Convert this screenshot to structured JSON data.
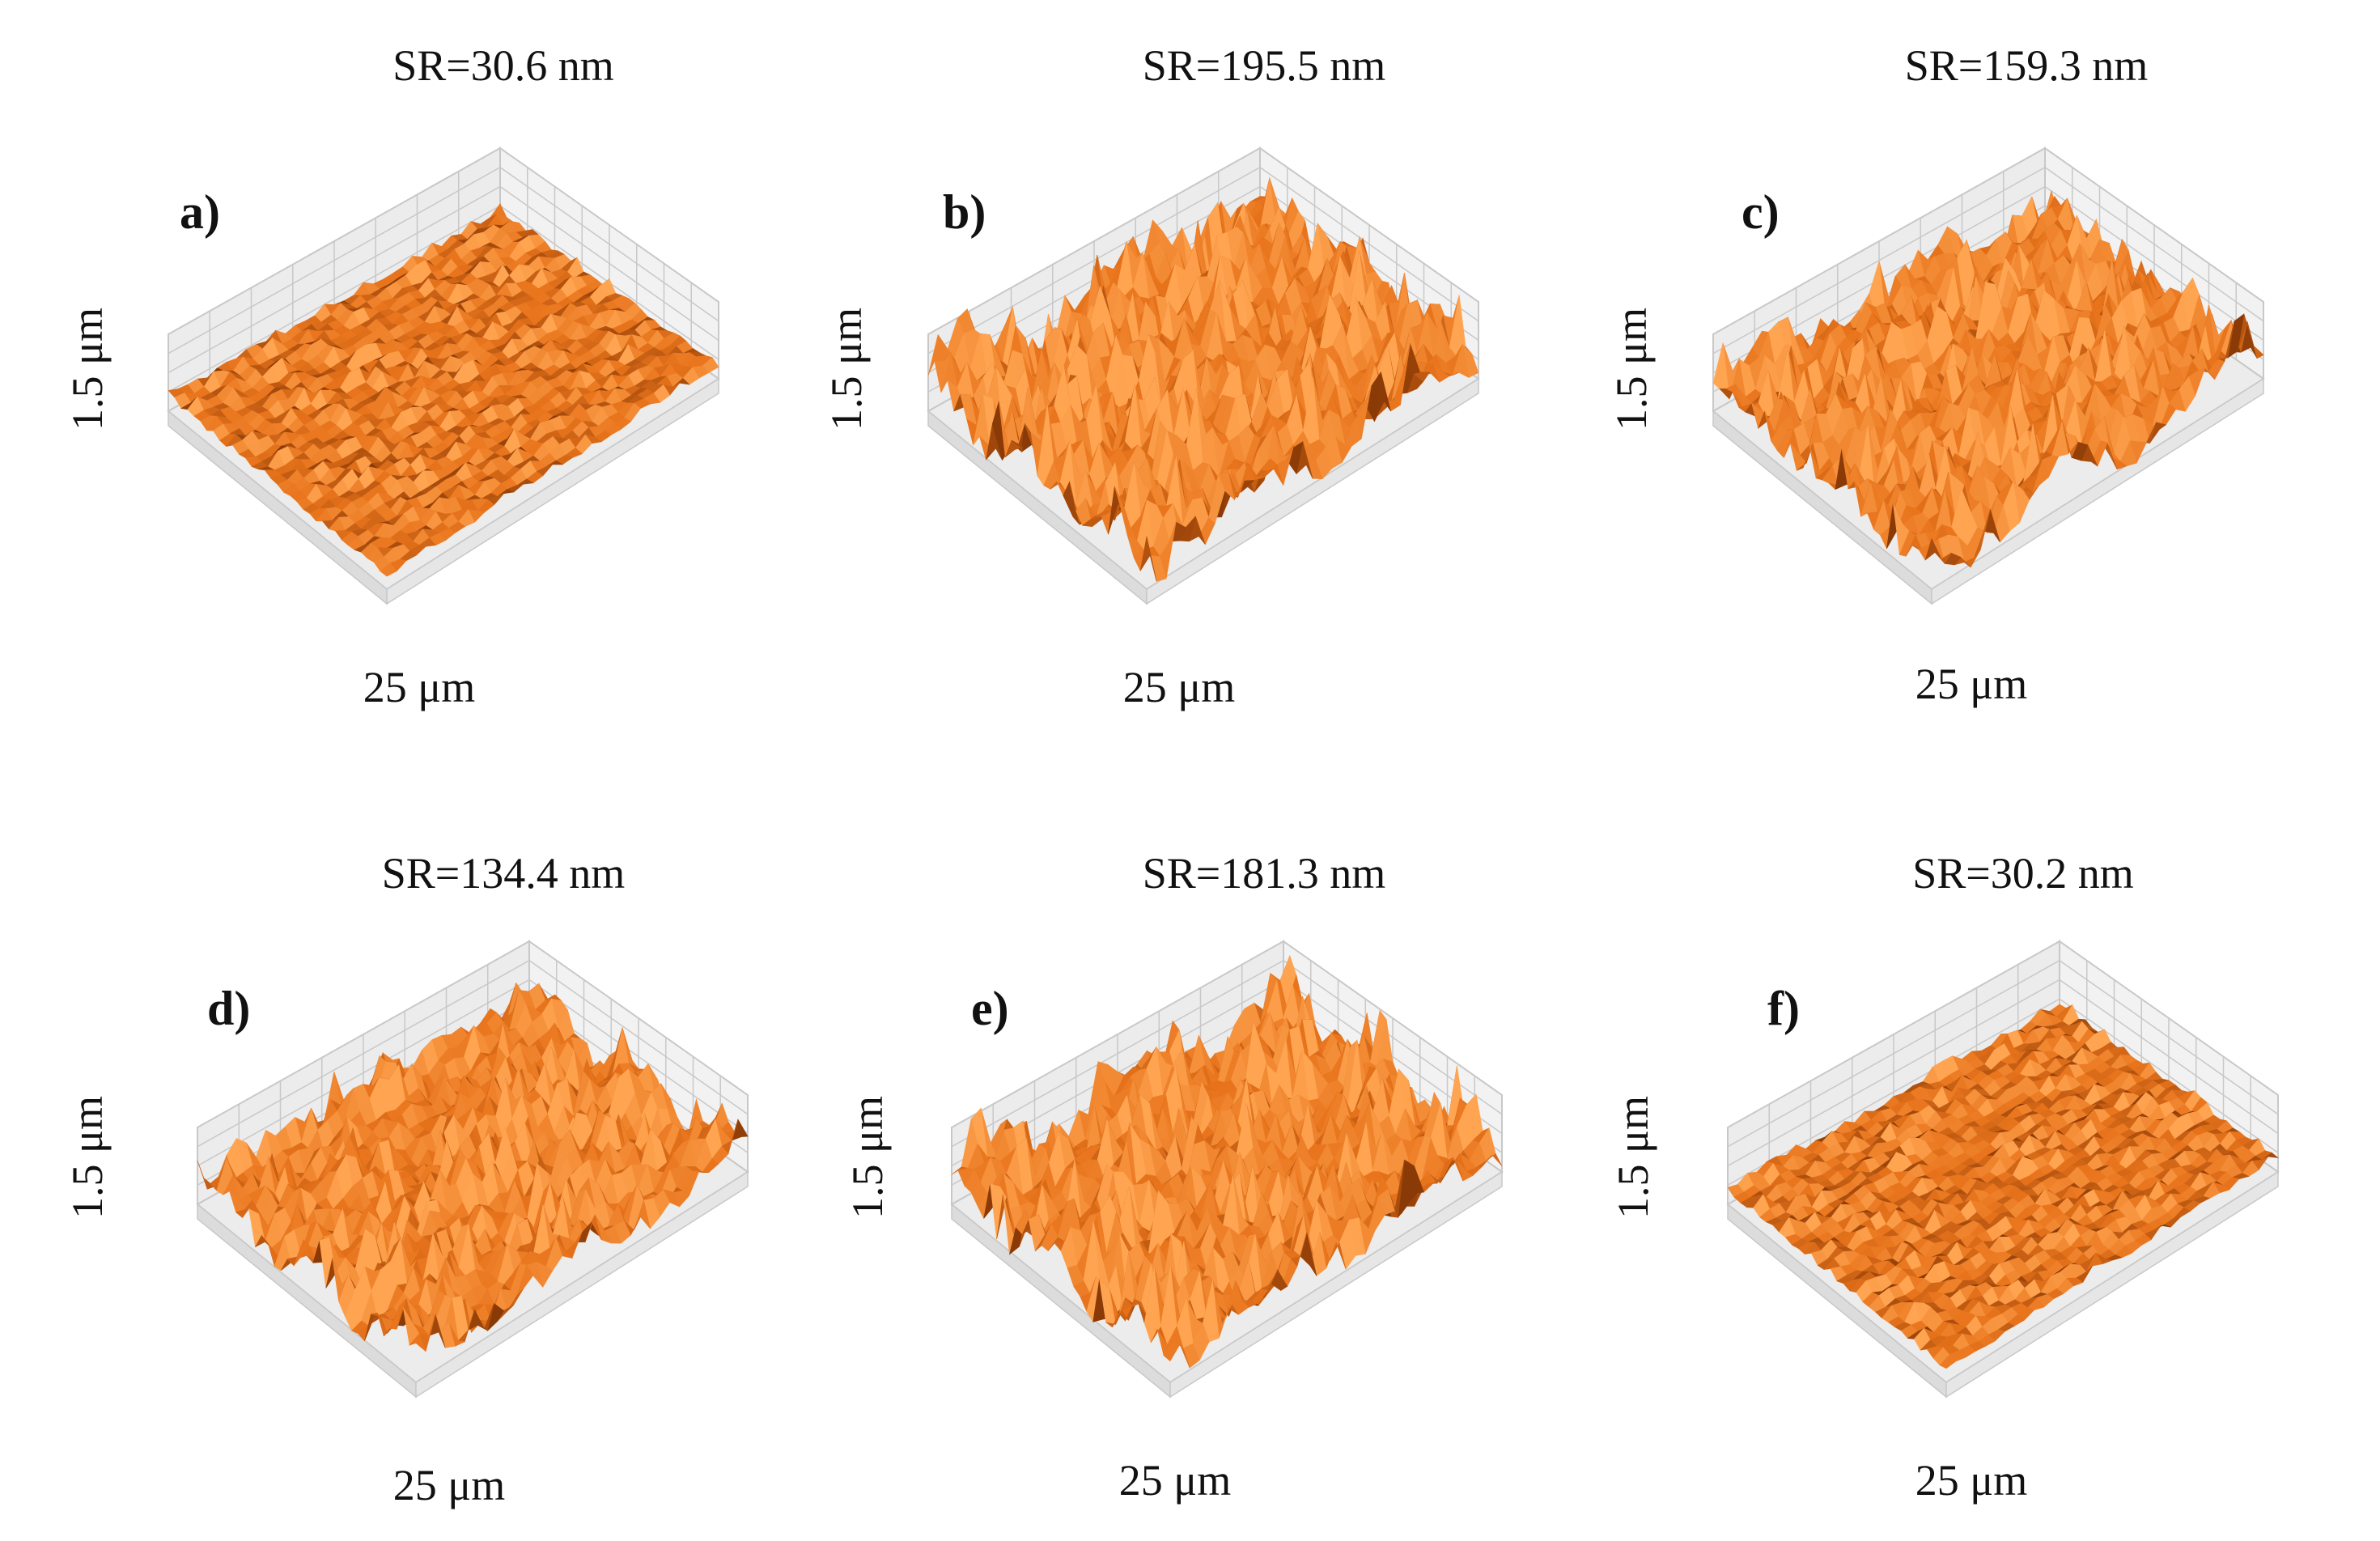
{
  "figure": {
    "panels": [
      {
        "id": "a",
        "letter": "a)",
        "sr_label": "SR=30.6 nm",
        "y_label": "1.5 μm",
        "x_label": "25 μm",
        "roughness_nm": 30.6
      },
      {
        "id": "b",
        "letter": "b)",
        "sr_label": "SR=195.5 nm",
        "y_label": "1.5 μm",
        "x_label": "25 μm",
        "roughness_nm": 195.5
      },
      {
        "id": "c",
        "letter": "c)",
        "sr_label": "SR=159.3 nm",
        "y_label": "1.5 μm",
        "x_label": "25 μm",
        "roughness_nm": 159.3
      },
      {
        "id": "d",
        "letter": "d)",
        "sr_label": "SR=134.4 nm",
        "y_label": "1.5 μm",
        "x_label": "25 μm",
        "roughness_nm": 134.4
      },
      {
        "id": "e",
        "letter": "e)",
        "sr_label": "SR=181.3 nm",
        "y_label": "1.5 μm",
        "x_label": "25 μm",
        "roughness_nm": 181.3
      },
      {
        "id": "f",
        "letter": "f)",
        "sr_label": "SR=30.2 nm",
        "y_label": "1.5 μm",
        "x_label": "25 μm",
        "roughness_nm": 30.2
      }
    ],
    "colors": {
      "surface": "#e8741c",
      "surface_light": "#ffa552",
      "surface_dark": "#8a3a06",
      "box_fill": "#ececec",
      "grid": "#c8c8c8"
    }
  }
}
